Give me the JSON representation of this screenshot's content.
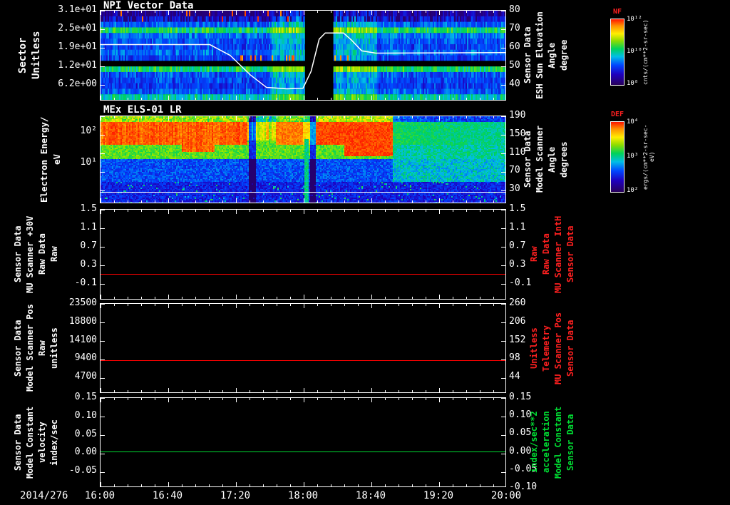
{
  "figure": {
    "background": "#000000",
    "date_label": "2014/276"
  },
  "xaxis": {
    "tick_labels": [
      "16:00",
      "16:40",
      "17:20",
      "18:00",
      "18:40",
      "19:20",
      "20:00"
    ]
  },
  "chart_data": [
    {
      "type": "heatmap",
      "title": "NPI Vector Data",
      "left_axis": {
        "label_lines": [
          "Sector",
          "Unitless"
        ],
        "ticks": [
          "3.1e+01",
          "2.5e+01",
          "1.9e+01",
          "1.2e+01",
          "6.2e+00"
        ]
      },
      "right_axis": {
        "label_lines": [
          "Sensor Data",
          "ESH Sun Elevation",
          "Angle",
          "degree"
        ],
        "ticks": [
          "80",
          "70",
          "60",
          "50",
          "40"
        ],
        "color": "#ffffff"
      },
      "colorbar": {
        "title": "NF",
        "unit": "cnts/(cm**2-sr-sec)",
        "ticks": [
          "10¹²",
          "10¹⁰",
          "10⁸"
        ]
      },
      "features": {
        "row_levels": [
          0.1,
          0.2,
          0.32,
          0.55,
          0.34,
          0.3,
          0.28,
          0.33,
          0.27,
          -1,
          0.55,
          0.3,
          0.28,
          0.26,
          0.31,
          0.48
        ],
        "bright_region_x": [
          0.42,
          0.68
        ],
        "data_gap_x": [
          0.505,
          0.575
        ],
        "sun_elevation_curve": {
          "color": "#ffffff",
          "points": [
            [
              0,
              0.38
            ],
            [
              0.27,
              0.38
            ],
            [
              0.32,
              0.5
            ],
            [
              0.37,
              0.72
            ],
            [
              0.41,
              0.86
            ],
            [
              0.46,
              0.875
            ],
            [
              0.5,
              0.87
            ],
            [
              0.52,
              0.68
            ],
            [
              0.54,
              0.32
            ],
            [
              0.555,
              0.25
            ],
            [
              0.6,
              0.25
            ],
            [
              0.62,
              0.33
            ],
            [
              0.645,
              0.45
            ],
            [
              0.68,
              0.475
            ],
            [
              1,
              0.47
            ]
          ]
        }
      }
    },
    {
      "type": "heatmap",
      "title": "MEx ELS-01 LR",
      "left_axis": {
        "label_lines": [
          "Electron Energy/",
          "eV"
        ],
        "ticks": [
          "10²",
          "10¹"
        ]
      },
      "right_axis": {
        "label_lines": [
          "Sensor Data",
          "Model Scanner",
          "Angle",
          "degrees"
        ],
        "ticks": [
          "190",
          "150",
          "110",
          "70",
          "30"
        ],
        "color": "#ffffff"
      },
      "colorbar": {
        "title": "DEF",
        "unit": "ergs/(cm**2-sr-sec-eV)",
        "ticks": [
          "10⁴",
          "10³",
          "10²"
        ]
      },
      "features": {
        "high_flux_end_x": 0.72,
        "white_line_y_frac": 0.88,
        "green_stripe_x": [
          0.502,
          0.512
        ],
        "dark_columns_x": [
          [
            0.365,
            0.382
          ],
          [
            0.516,
            0.53
          ]
        ]
      }
    },
    {
      "type": "line",
      "left_axis": {
        "label_lines": [
          "Sensor Data",
          "MU Scanner +30V",
          "Raw Data",
          "Raw"
        ],
        "ticks": [
          "1.5",
          "1.1",
          "0.7",
          "0.3",
          "-0.1"
        ]
      },
      "right_axis": {
        "label_lines": [
          "Sensor Data",
          "MU Scanner IntH",
          "Raw Data",
          "Raw"
        ],
        "ticks": [
          "1.5",
          "1.1",
          "0.7",
          "0.3",
          "-0.1"
        ],
        "color": "#ff2020"
      },
      "series": {
        "name": "MU Scanner +30V Raw",
        "color": "#ff0000",
        "constant_value": 0.0,
        "y_frac": 0.73
      }
    },
    {
      "type": "line",
      "left_axis": {
        "label_lines": [
          "Sensor Data",
          "Model Scanner Pos",
          "Raw",
          "unitless"
        ],
        "ticks": [
          "23500",
          "18800",
          "14100",
          "9400",
          "4700"
        ]
      },
      "right_axis": {
        "label_lines": [
          "Sensor Data",
          "MU Scanner Pos",
          "Telemetry",
          "Unitless"
        ],
        "ticks": [
          "260",
          "206",
          "152",
          "98",
          "44"
        ],
        "color": "#ff2020"
      },
      "series": {
        "name": "Model Scanner Pos Raw",
        "color": "#ff0000",
        "constant_value": 8600,
        "y_frac": 0.645
      }
    },
    {
      "type": "line",
      "left_axis": {
        "label_lines": [
          "Sensor Data",
          "Model Constant",
          "velocity",
          "index/sec"
        ],
        "ticks": [
          "0.15",
          "0.10",
          "0.05",
          "0.00",
          "-0.05"
        ]
      },
      "right_axis": {
        "label_lines": [
          "Sensor Data",
          "Model Constant",
          "acceleration",
          "index/sec**2"
        ],
        "ticks": [
          "0.15",
          "0.10",
          "0.05",
          "0.00",
          "-0.05",
          "-0.10"
        ],
        "color": "#00dd33"
      },
      "series": {
        "name": "Model Constant velocity",
        "color": "#00dd33",
        "constant_value": 0.0,
        "y_frac": 0.61
      }
    }
  ]
}
